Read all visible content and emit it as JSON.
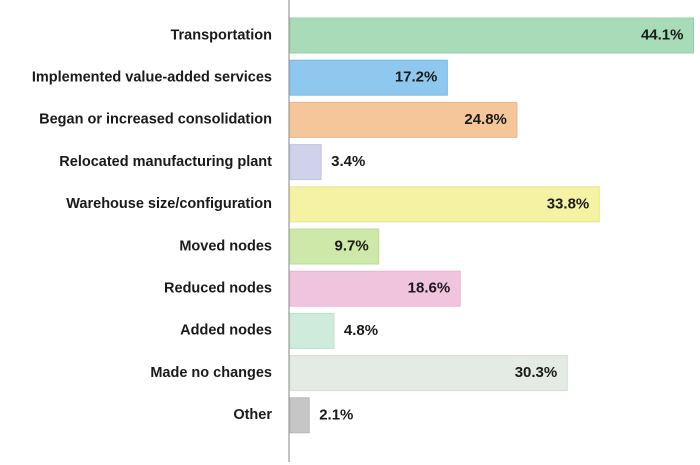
{
  "chart_data": {
    "type": "bar",
    "orientation": "horizontal",
    "title": "",
    "xlabel": "",
    "ylabel": "",
    "xlim": [
      0,
      45
    ],
    "grid": false,
    "legend": "none",
    "categories": [
      "Transportation",
      "Implemented value-added services",
      "Began or increased consolidation",
      "Relocated manufacturing plant",
      "Warehouse size/configuration",
      "Moved nodes",
      "Reduced nodes",
      "Added nodes",
      "Made no changes",
      "Other"
    ],
    "values": [
      44.1,
      17.2,
      24.8,
      3.4,
      33.8,
      9.7,
      18.6,
      4.8,
      30.3,
      2.1
    ],
    "value_labels": [
      "44.1%",
      "17.2%",
      "24.8%",
      "3.4%",
      "33.8%",
      "9.7%",
      "18.6%",
      "4.8%",
      "30.3%",
      "2.1%"
    ],
    "colors": [
      "#a8dbb7",
      "#8ec8ee",
      "#f5c69a",
      "#cfd2ea",
      "#f6f2a4",
      "#cde8a8",
      "#f1c4de",
      "#cfebdc",
      "#e3ebe4",
      "#c6c6c6"
    ],
    "border_colors": [
      "#98cfa8",
      "#7dbbe6",
      "#e9b98b",
      "#c0c4e0",
      "#e9e491",
      "#bddc97",
      "#e6b5d2",
      "#bfe0cf",
      "#d2ddd3",
      "#b8b8b8"
    ]
  }
}
